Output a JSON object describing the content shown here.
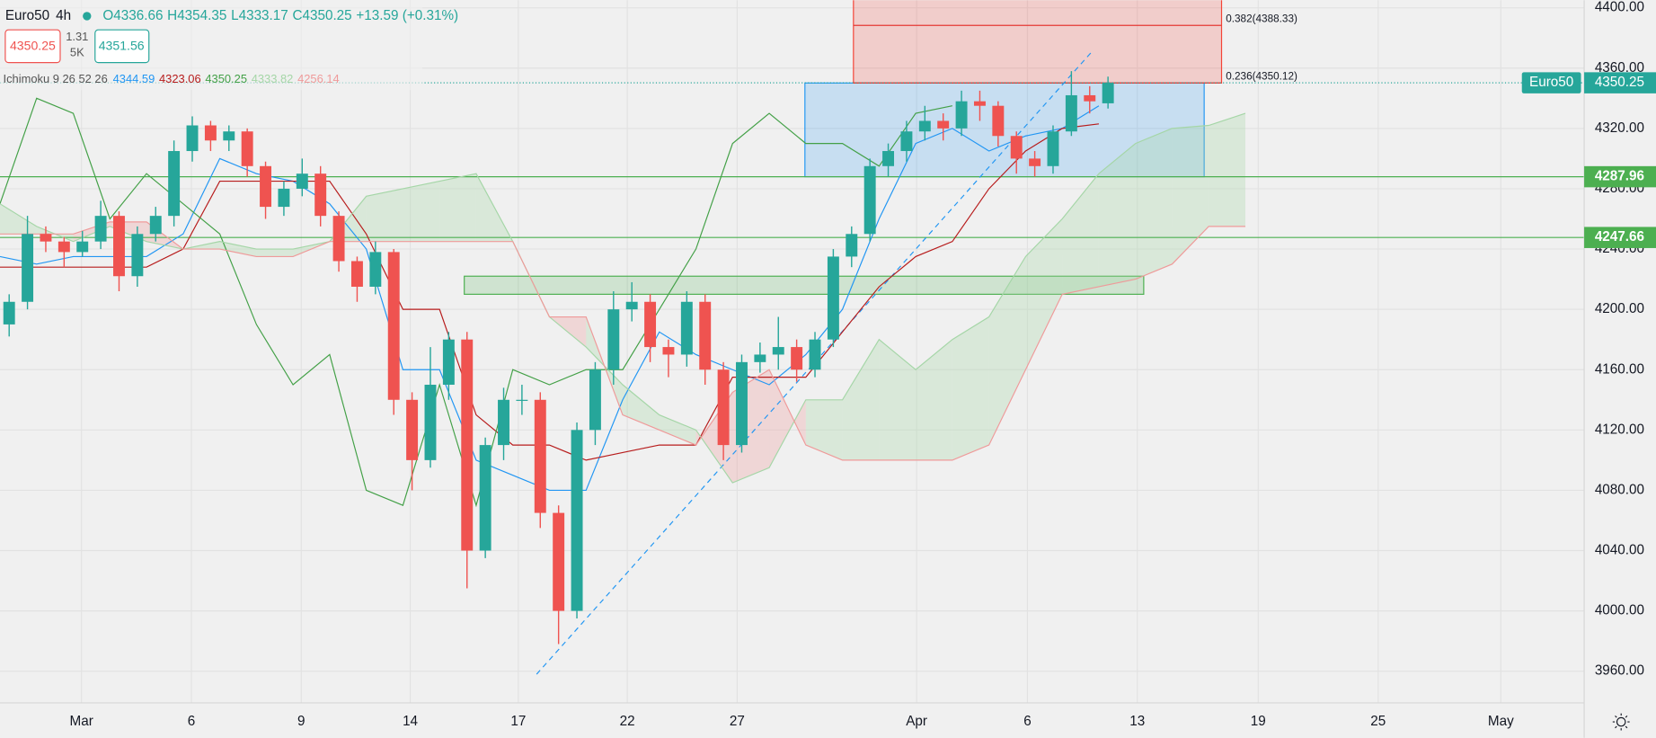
{
  "chart_data": {
    "type": "candlestick",
    "symbol": "Euro50",
    "interval": "4h",
    "ohlc_legend": [
      "O4336.66",
      "H4354.35",
      "L4333.17",
      "C4350.25"
    ],
    "change": "+13.59 (+0.31%)",
    "sell": "4350.25",
    "spread": "1.31",
    "volume": "5K",
    "buy": "4351.56",
    "indicator": "Ichimoku 9 26 52 26",
    "indicator_values": [
      "4344.59",
      "4323.06",
      "4350.25",
      "4333.82",
      "4256.14"
    ],
    "x": [
      1,
      3,
      5,
      7,
      9,
      11,
      13,
      15,
      17,
      19,
      21,
      23,
      25,
      27,
      29,
      31,
      33,
      35,
      37,
      39,
      41,
      43,
      45,
      47,
      49,
      51,
      53,
      55,
      57,
      59,
      61,
      63,
      65,
      67,
      69,
      71,
      73,
      75,
      77,
      79,
      81,
      83,
      85,
      87,
      89,
      91,
      93,
      95,
      97,
      99,
      101,
      103,
      105,
      107,
      109,
      111,
      113,
      115,
      117,
      119,
      121
    ],
    "open": [
      4190,
      4205,
      4250,
      4245,
      4238,
      4245,
      4262,
      4222,
      4250,
      4262,
      4305,
      4322,
      4312,
      4318,
      4295,
      4268,
      4280,
      4290,
      4262,
      4232,
      4215,
      4238,
      4140,
      4100,
      4150,
      4180,
      4040,
      4110,
      4140,
      4140,
      4065,
      4000,
      4120,
      4160,
      4200,
      4205,
      4175,
      4170,
      4205,
      4160,
      4110,
      4165,
      4170,
      4175,
      4160,
      4180,
      4235,
      4250,
      4295,
      4305,
      4318,
      4325,
      4320,
      4338,
      4335,
      4315,
      4300,
      4295,
      4318,
      4342,
      4336.66
    ],
    "high": [
      4210,
      4262,
      4255,
      4248,
      4252,
      4272,
      4265,
      4255,
      4268,
      4312,
      4328,
      4325,
      4322,
      4320,
      4298,
      4285,
      4300,
      4295,
      4265,
      4235,
      4245,
      4240,
      4145,
      4175,
      4185,
      4185,
      4115,
      4148,
      4150,
      4145,
      4070,
      4125,
      4165,
      4212,
      4218,
      4210,
      4180,
      4212,
      4210,
      4165,
      4170,
      4178,
      4195,
      4180,
      4185,
      4240,
      4255,
      4300,
      4310,
      4325,
      4335,
      4330,
      4345,
      4345,
      4338,
      4318,
      4305,
      4322,
      4358,
      4348,
      4354.35
    ],
    "low": [
      4182,
      4200,
      4238,
      4228,
      4235,
      4240,
      4212,
      4215,
      4245,
      4255,
      4298,
      4305,
      4305,
      4288,
      4260,
      4262,
      4275,
      4255,
      4225,
      4205,
      4210,
      4130,
      4080,
      4095,
      4140,
      4015,
      4035,
      4100,
      4130,
      4055,
      3978,
      3995,
      4110,
      4150,
      4192,
      4165,
      4155,
      4162,
      4150,
      4100,
      4105,
      4158,
      4160,
      4152,
      4155,
      4175,
      4228,
      4245,
      4288,
      4298,
      4312,
      4312,
      4315,
      4325,
      4308,
      4290,
      4288,
      4290,
      4315,
      4330,
      4333.17
    ],
    "close": [
      4205,
      4250,
      4245,
      4238,
      4245,
      4262,
      4222,
      4250,
      4262,
      4305,
      4322,
      4312,
      4318,
      4295,
      4268,
      4280,
      4290,
      4262,
      4232,
      4215,
      4238,
      4140,
      4100,
      4150,
      4180,
      4040,
      4110,
      4140,
      4140,
      4065,
      4000,
      4120,
      4160,
      4200,
      4205,
      4175,
      4170,
      4205,
      4160,
      4110,
      4165,
      4170,
      4175,
      4160,
      4180,
      4235,
      4250,
      4295,
      4305,
      4318,
      4325,
      4320,
      4338,
      4335,
      4315,
      4300,
      4295,
      4318,
      4342,
      4338,
      4350.25
    ],
    "up_color": "#26a69a",
    "down_color": "#ef5350",
    "xlim": [
      0,
      173
    ],
    "xticks": [
      {
        "value": 8.9,
        "label": "Mar"
      },
      {
        "value": 20.9,
        "label": "6"
      },
      {
        "value": 32.9,
        "label": "9"
      },
      {
        "value": 44.8,
        "label": "14"
      },
      {
        "value": 56.6,
        "label": "17"
      },
      {
        "value": 68.5,
        "label": "22"
      },
      {
        "value": 80.5,
        "label": "27"
      },
      {
        "value": 100.1,
        "label": "Apr"
      },
      {
        "value": 112.2,
        "label": "6"
      },
      {
        "value": 124.2,
        "label": "13"
      },
      {
        "value": 137.4,
        "label": "19"
      },
      {
        "value": 150.5,
        "label": "25"
      },
      {
        "value": 163.9,
        "label": "May"
      }
    ],
    "ylim": [
      3939,
      4405
    ],
    "yticks": [
      {
        "value": 3960,
        "label": "3960.00"
      },
      {
        "value": 4000,
        "label": "4000.00"
      },
      {
        "value": 4040,
        "label": "4040.00"
      },
      {
        "value": 4080,
        "label": "4080.00"
      },
      {
        "value": 4120,
        "label": "4120.00"
      },
      {
        "value": 4160,
        "label": "4160.00"
      },
      {
        "value": 4200,
        "label": "4200.00"
      },
      {
        "value": 4240,
        "label": "4240.00"
      },
      {
        "value": 4280,
        "label": "4280.00"
      },
      {
        "value": 4320,
        "label": "4320.00"
      },
      {
        "value": 4360,
        "label": "4360.00"
      },
      {
        "value": 4400,
        "label": "4400.00"
      }
    ],
    "grid": true,
    "ichimoku": {
      "x": [
        0,
        4,
        8,
        12,
        16,
        20,
        24,
        28,
        32,
        36,
        40,
        44,
        48,
        52,
        56,
        60,
        64,
        68,
        72,
        76,
        80,
        84,
        88,
        92,
        96,
        100,
        104,
        108,
        112,
        116,
        120,
        124,
        128,
        132,
        136
      ],
      "series": [
        {
          "color": "#2196f3",
          "values": [
            4235,
            4230,
            4235,
            4235,
            4235,
            4250,
            4300,
            4290,
            4285,
            4270,
            4240,
            4160,
            4160,
            4100,
            4090,
            4080,
            4080,
            4140,
            4185,
            4170,
            4160,
            4150,
            4170,
            4200,
            4260,
            4310,
            4320,
            4305,
            4315,
            4320,
            4335,
            null,
            null,
            null,
            null
          ]
        },
        {
          "color": "#b71c1c",
          "values": [
            4228,
            4228,
            4228,
            4228,
            4228,
            4240,
            4285,
            4285,
            4285,
            4285,
            4250,
            4200,
            4200,
            4130,
            4110,
            4110,
            4100,
            4105,
            4110,
            4110,
            4155,
            4155,
            4155,
            4185,
            4215,
            4235,
            4245,
            4280,
            4305,
            4320,
            4323,
            null,
            null,
            null,
            null
          ]
        },
        {
          "color": "#43a047",
          "values": [
            4270,
            4340,
            4330,
            4260,
            4290,
            4270,
            4250,
            4190,
            4150,
            4170,
            4080,
            4070,
            4150,
            4070,
            4160,
            4150,
            4160,
            4160,
            4200,
            4240,
            4310,
            4330,
            4310,
            4310,
            4295,
            4330,
            4335,
            null,
            null,
            null,
            null,
            null,
            null,
            null,
            null
          ]
        },
        {
          "color": "#a5d6a7",
          "values": [
            4270,
            4255,
            4245,
            4255,
            4245,
            4240,
            4245,
            4240,
            4240,
            4245,
            4275,
            4280,
            4285,
            4290,
            4245,
            4195,
            4175,
            4150,
            4130,
            4120,
            4085,
            4095,
            4140,
            4140,
            4180,
            4160,
            4180,
            4195,
            4235,
            4260,
            4290,
            4310,
            4320,
            4322,
            4330
          ]
        },
        {
          "color": "#ef9a9a",
          "values": [
            4250,
            4250,
            4250,
            4258,
            4258,
            4240,
            4240,
            4235,
            4235,
            4245,
            4245,
            4245,
            4245,
            4245,
            4245,
            4195,
            4195,
            4130,
            4120,
            4110,
            4145,
            4160,
            4110,
            4100,
            4100,
            4100,
            4100,
            4110,
            4160,
            4210,
            4215,
            4220,
            4230,
            4255,
            4255
          ]
        }
      ]
    },
    "last_price": 4350.25,
    "levels": [
      4287.96,
      4247.66
    ],
    "level_color": "#4caf50",
    "rectangles": [
      {
        "x": [
          87.9,
          131.5
        ],
        "y": [
          4287.96,
          4350.12
        ],
        "color": "#2196f3"
      },
      {
        "x": [
          93.2,
          133.4
        ],
        "y": [
          4350.12,
          4410
        ],
        "color": "#f44336"
      },
      {
        "x": [
          50.7,
          124.9
        ],
        "y": [
          4210,
          4222
        ],
        "color": "#4caf50"
      }
    ],
    "fib": [
      {
        "price": 4388.33,
        "label": "0.382(4388.33)"
      },
      {
        "price": 4350.12,
        "label": "0.236(4350.12)"
      }
    ],
    "trendline": {
      "x": [
        58.6,
        119.4
      ],
      "y": [
        3958,
        4372
      ]
    }
  }
}
